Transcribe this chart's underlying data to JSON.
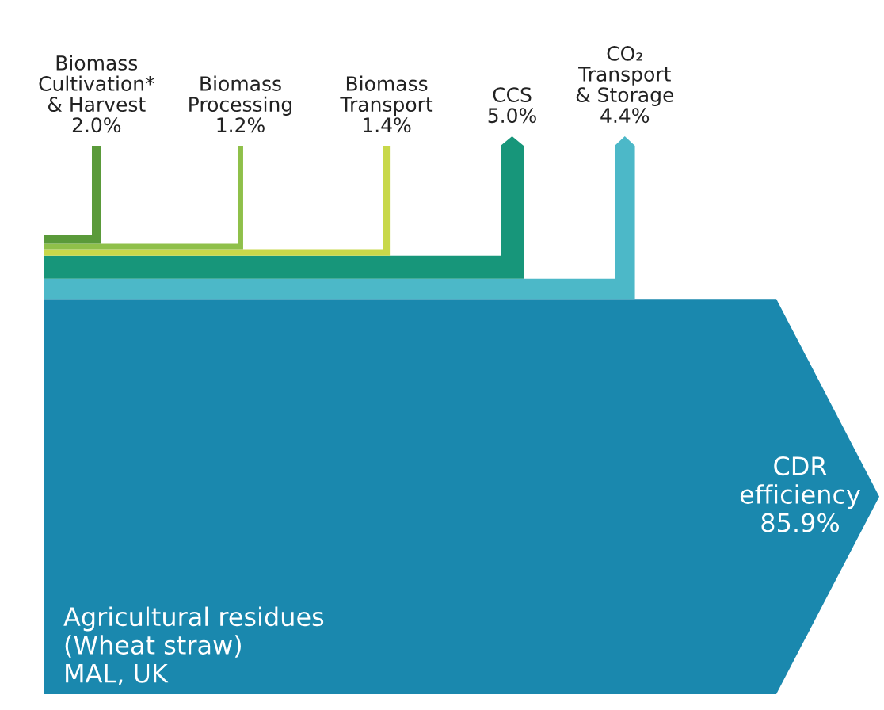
{
  "chart_data": {
    "type": "other",
    "categories": [
      "Biomass\nCultivation*\n& Harvest",
      "Biomass\nProcessing",
      "Biomass\nTransport",
      "CCS",
      "CO₂\nTransport\n& Storage",
      "CDR\nefficiency"
    ],
    "values": [
      2.0,
      1.2,
      1.4,
      5.0,
      4.4,
      85.9
    ],
    "value_labels": [
      "2.0%",
      "1.2%",
      "1.4%",
      "5.0%",
      "4.4%",
      "85.9%"
    ],
    "colors": [
      "#5a9a3a",
      "#8fc04a",
      "#c8d84a",
      "#17967a",
      "#4cb8c8",
      "#1a88ae"
    ],
    "annotations": [
      "Agricultural residues\n(Wheat straw)\nMAL, UK"
    ]
  }
}
